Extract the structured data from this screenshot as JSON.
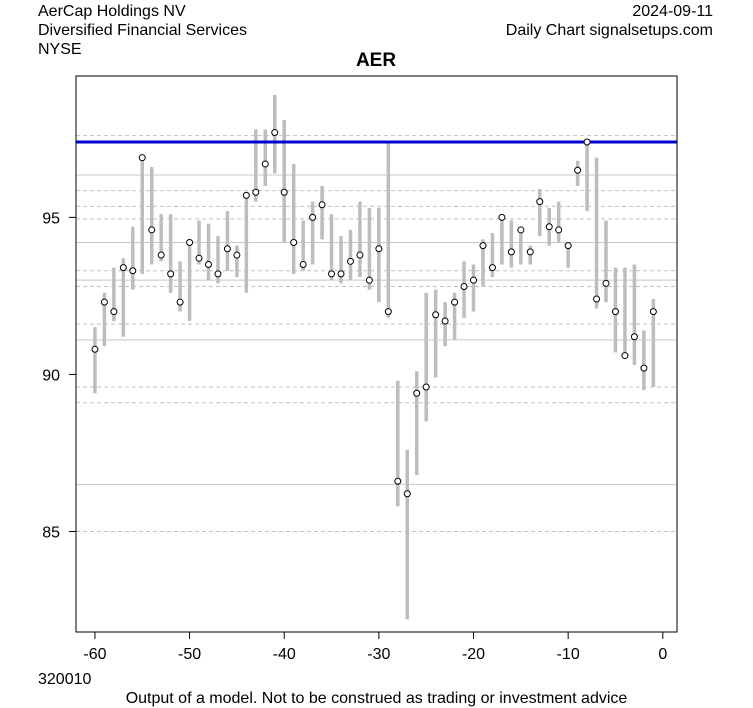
{
  "header": {
    "company": "AerCap Holdings NV",
    "sector": "Diversified Financial Services",
    "exchange": "NYSE",
    "date": "2024-09-11",
    "source": "Daily Chart signalsetups.com",
    "code": "320010",
    "disclaimer": "Output of a model. Not to be construed as trading or investment advice"
  },
  "colors": {
    "range_bar": "#bdbdbd",
    "reference_line": "#0000cd",
    "solid_level": "#c8c8c8",
    "dashed_level": "#c0c0c0",
    "point_fill": "#ffffff",
    "point_stroke": "#000000"
  },
  "chart_data": {
    "type": "scatter",
    "title": "AER",
    "xlabel": "",
    "ylabel": "",
    "xlim": [
      -62,
      1.5
    ],
    "ylim": [
      81.8,
      99.5
    ],
    "xticks": [
      -60,
      -50,
      -40,
      -30,
      -20,
      -10,
      0
    ],
    "yticks": [
      85,
      90,
      95
    ],
    "grid": false,
    "reference_line": 97.4,
    "solid_levels": [
      96.35,
      94.2,
      93.0,
      91.1,
      86.5
    ],
    "dashed_levels": [
      97.6,
      95.85,
      95.35,
      94.95,
      93.3,
      92.8,
      91.6,
      89.6,
      89.1,
      85.0
    ],
    "series": [
      {
        "x": [
          -60,
          -59,
          -58,
          -57,
          -56,
          -55,
          -54,
          -53,
          -52,
          -51,
          -50,
          -49,
          -48,
          -47,
          -46,
          -45,
          -44,
          -43,
          -42,
          -41,
          -40,
          -39,
          -38,
          -37,
          -36,
          -35,
          -34,
          -33,
          -32,
          -31,
          -30,
          -29,
          -28,
          -27,
          -26,
          -25,
          -24,
          -23,
          -22,
          -21,
          -20,
          -19,
          -18,
          -17,
          -16,
          -15,
          -14,
          -13,
          -12,
          -11,
          -10,
          -9,
          -8,
          -7,
          -6,
          -5,
          -4,
          -3,
          -2,
          -1
        ],
        "close": [
          90.8,
          92.3,
          92.0,
          93.4,
          93.3,
          96.9,
          94.6,
          93.8,
          93.2,
          92.3,
          94.2,
          93.7,
          93.5,
          93.2,
          94.0,
          93.8,
          95.7,
          95.8,
          96.7,
          97.7,
          95.8,
          94.2,
          93.5,
          95.0,
          95.4,
          93.2,
          93.2,
          93.6,
          93.8,
          93.0,
          94.0,
          92.0,
          86.6,
          86.2,
          89.4,
          89.6,
          91.9,
          91.7,
          92.3,
          92.8,
          93.0,
          94.1,
          93.4,
          95.0,
          93.9,
          94.6,
          93.9,
          95.5,
          94.7,
          94.6,
          94.1,
          96.5,
          97.4,
          92.4,
          92.9,
          92.0,
          90.6,
          91.2,
          90.2,
          92.0
        ],
        "low": [
          89.4,
          90.9,
          91.7,
          91.2,
          92.7,
          93.2,
          93.5,
          93.6,
          92.6,
          92.0,
          91.7,
          93.5,
          93.0,
          92.9,
          93.3,
          93.1,
          92.6,
          95.5,
          96.0,
          96.4,
          94.2,
          93.2,
          93.3,
          93.5,
          94.3,
          93.0,
          92.9,
          93.0,
          93.1,
          92.7,
          92.3,
          91.8,
          85.8,
          82.2,
          86.8,
          88.5,
          89.9,
          90.9,
          91.1,
          91.8,
          92.0,
          92.8,
          93.1,
          93.5,
          93.4,
          93.5,
          93.5,
          94.4,
          94.1,
          94.2,
          93.4,
          96.0,
          95.2,
          92.1,
          92.3,
          90.7,
          90.5,
          90.3,
          89.5,
          89.6
        ],
        "high": [
          91.5,
          92.6,
          93.4,
          93.7,
          94.7,
          96.9,
          96.6,
          95.1,
          95.1,
          93.6,
          94.3,
          94.9,
          94.8,
          94.4,
          95.2,
          94.1,
          95.7,
          97.8,
          97.8,
          98.9,
          98.1,
          96.7,
          94.9,
          95.5,
          96.0,
          95.1,
          94.4,
          94.6,
          95.5,
          95.3,
          95.3,
          97.4,
          89.8,
          87.6,
          90.1,
          92.6,
          92.7,
          92.3,
          92.6,
          93.6,
          93.5,
          94.3,
          94.5,
          95.0,
          94.9,
          94.6,
          94.1,
          95.9,
          95.3,
          95.5,
          94.2,
          96.8,
          97.5,
          96.9,
          94.9,
          93.4,
          93.4,
          93.5,
          91.4,
          92.4
        ]
      }
    ]
  }
}
